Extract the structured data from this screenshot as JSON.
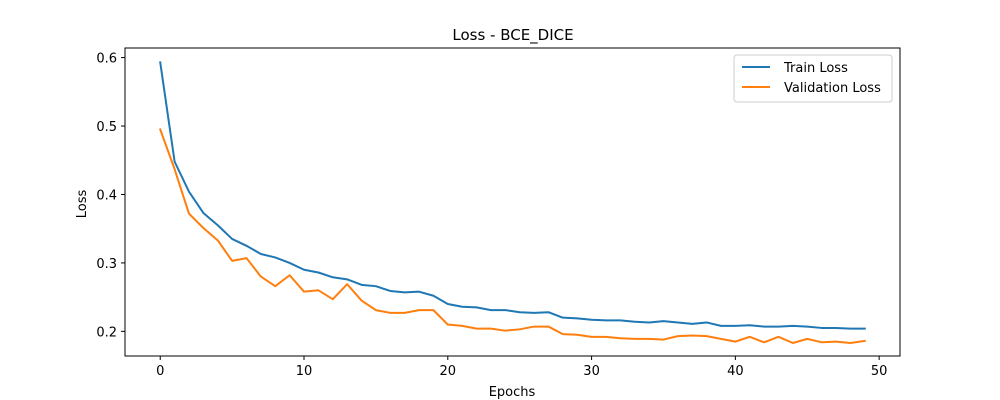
{
  "chart_data": {
    "type": "line",
    "title": "Loss - BCE_DICE",
    "xlabel": "Epochs",
    "ylabel": "Loss",
    "xlim": [
      -2.45,
      51.45
    ],
    "ylim": [
      0.164,
      0.614
    ],
    "xticks": [
      0,
      10,
      20,
      30,
      40,
      50
    ],
    "yticks": [
      0.2,
      0.3,
      0.4,
      0.5,
      0.6
    ],
    "xtick_labels": [
      "0",
      "10",
      "20",
      "30",
      "40",
      "50"
    ],
    "ytick_labels": [
      "0.2",
      "0.3",
      "0.4",
      "0.5",
      "0.6"
    ],
    "grid": false,
    "legend_position": "top-right",
    "x": [
      0,
      1,
      2,
      3,
      4,
      5,
      6,
      7,
      8,
      9,
      10,
      11,
      12,
      13,
      14,
      15,
      16,
      17,
      18,
      19,
      20,
      21,
      22,
      23,
      24,
      25,
      26,
      27,
      28,
      29,
      30,
      31,
      32,
      33,
      34,
      35,
      36,
      37,
      38,
      39,
      40,
      41,
      42,
      43,
      44,
      45,
      46,
      47,
      48,
      49
    ],
    "series": [
      {
        "name": "Train Loss",
        "color": "#1f77b4",
        "values": [
          0.593,
          0.448,
          0.404,
          0.373,
          0.355,
          0.335,
          0.325,
          0.313,
          0.308,
          0.3,
          0.29,
          0.286,
          0.279,
          0.276,
          0.268,
          0.266,
          0.259,
          0.257,
          0.258,
          0.252,
          0.24,
          0.236,
          0.235,
          0.231,
          0.231,
          0.228,
          0.227,
          0.228,
          0.22,
          0.219,
          0.217,
          0.216,
          0.216,
          0.214,
          0.213,
          0.215,
          0.213,
          0.211,
          0.213,
          0.208,
          0.208,
          0.209,
          0.207,
          0.207,
          0.208,
          0.207,
          0.205,
          0.205,
          0.204,
          0.204
        ]
      },
      {
        "name": "Validation Loss",
        "color": "#ff7f0e",
        "values": [
          0.495,
          0.437,
          0.372,
          0.351,
          0.333,
          0.303,
          0.307,
          0.28,
          0.266,
          0.282,
          0.258,
          0.26,
          0.247,
          0.269,
          0.245,
          0.231,
          0.227,
          0.227,
          0.231,
          0.231,
          0.21,
          0.208,
          0.204,
          0.204,
          0.201,
          0.203,
          0.207,
          0.207,
          0.196,
          0.195,
          0.192,
          0.192,
          0.19,
          0.189,
          0.189,
          0.188,
          0.193,
          0.194,
          0.193,
          0.189,
          0.185,
          0.192,
          0.184,
          0.192,
          0.183,
          0.189,
          0.184,
          0.185,
          0.183,
          0.186
        ]
      }
    ]
  }
}
